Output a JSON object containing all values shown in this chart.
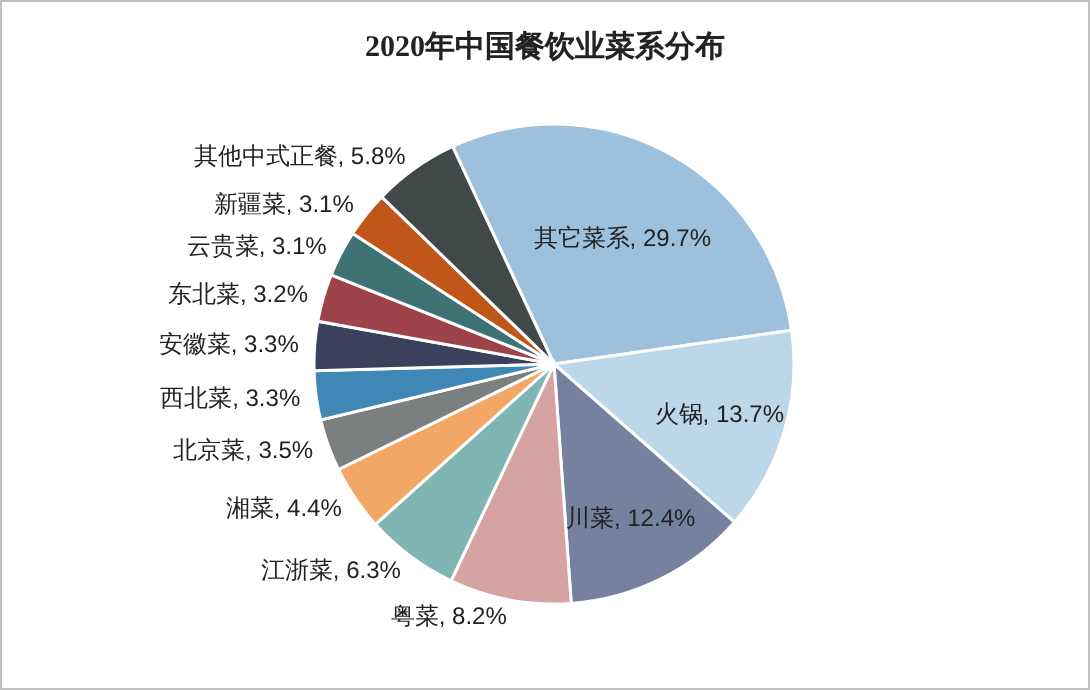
{
  "chart_data": {
    "type": "pie",
    "title": "2020年中国餐饮业菜系分布",
    "categories": [
      "其它菜系",
      "火锅",
      "川菜",
      "粤菜",
      "江浙菜",
      "湘菜",
      "北京菜",
      "西北菜",
      "安徽菜",
      "东北菜",
      "云贵菜",
      "新疆菜",
      "其他中式正餐"
    ],
    "values": [
      29.7,
      13.7,
      12.4,
      8.2,
      6.3,
      4.4,
      3.5,
      3.3,
      3.3,
      3.2,
      3.1,
      3.1,
      5.8
    ],
    "value_labels": [
      "29.7%",
      "13.7%",
      "12.4%",
      "8.2%",
      "6.3%",
      "4.4%",
      "3.5%",
      "3.3%",
      "3.3%",
      "3.2%",
      "3.1%",
      "3.1%",
      "5.8%"
    ],
    "colors": [
      "#9dc0dc",
      "#bcd6ea",
      "#76819f",
      "#d4a3a2",
      "#7fb5b2",
      "#f3a766",
      "#7c7f7f",
      "#3f87b5",
      "#3b405c",
      "#9f434a",
      "#3e7275",
      "#c0561a",
      "#404848"
    ],
    "legend": false
  }
}
